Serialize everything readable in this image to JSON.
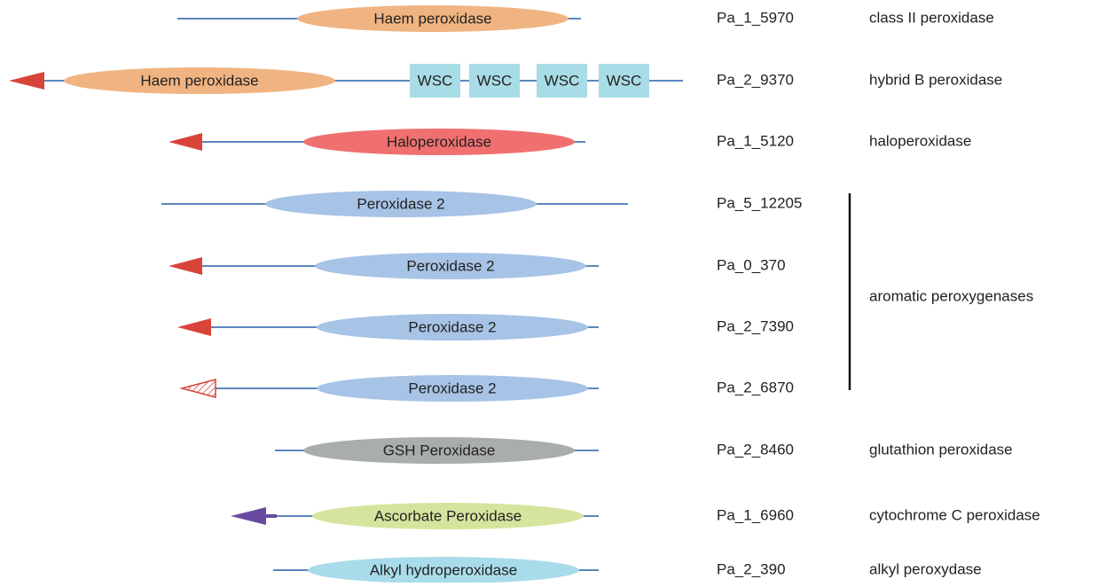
{
  "rows": [
    {
      "domains": [
        "Haem peroxidase"
      ],
      "id": "Pa_1_5970",
      "class": "class II peroxidase"
    },
    {
      "domains": [
        "Haem peroxidase",
        "WSC",
        "WSC",
        "WSC",
        "WSC"
      ],
      "id": "Pa_2_9370",
      "class": "hybrid B peroxidase"
    },
    {
      "domains": [
        "Haloperoxidase"
      ],
      "id": "Pa_1_5120",
      "class": "haloperoxidase"
    },
    {
      "domains": [
        "Peroxidase 2"
      ],
      "id": "Pa_5_12205"
    },
    {
      "domains": [
        "Peroxidase 2"
      ],
      "id": "Pa_0_370"
    },
    {
      "domains": [
        "Peroxidase 2"
      ],
      "id": "Pa_2_7390"
    },
    {
      "domains": [
        "Peroxidase 2"
      ],
      "id": "Pa_2_6870"
    },
    {
      "domains": [
        "GSH Peroxidase"
      ],
      "id": "Pa_2_8460",
      "class": "glutathion peroxidase"
    },
    {
      "domains": [
        "Ascorbate Peroxidase"
      ],
      "id": "Pa_1_6960",
      "class": "cytochrome C peroxidase"
    },
    {
      "domains": [
        "Alkyl hydroperoxidase"
      ],
      "id": "Pa_2_390",
      "class": "alkyl peroxydase"
    }
  ],
  "group": {
    "label": "aromatic peroxygenases"
  }
}
